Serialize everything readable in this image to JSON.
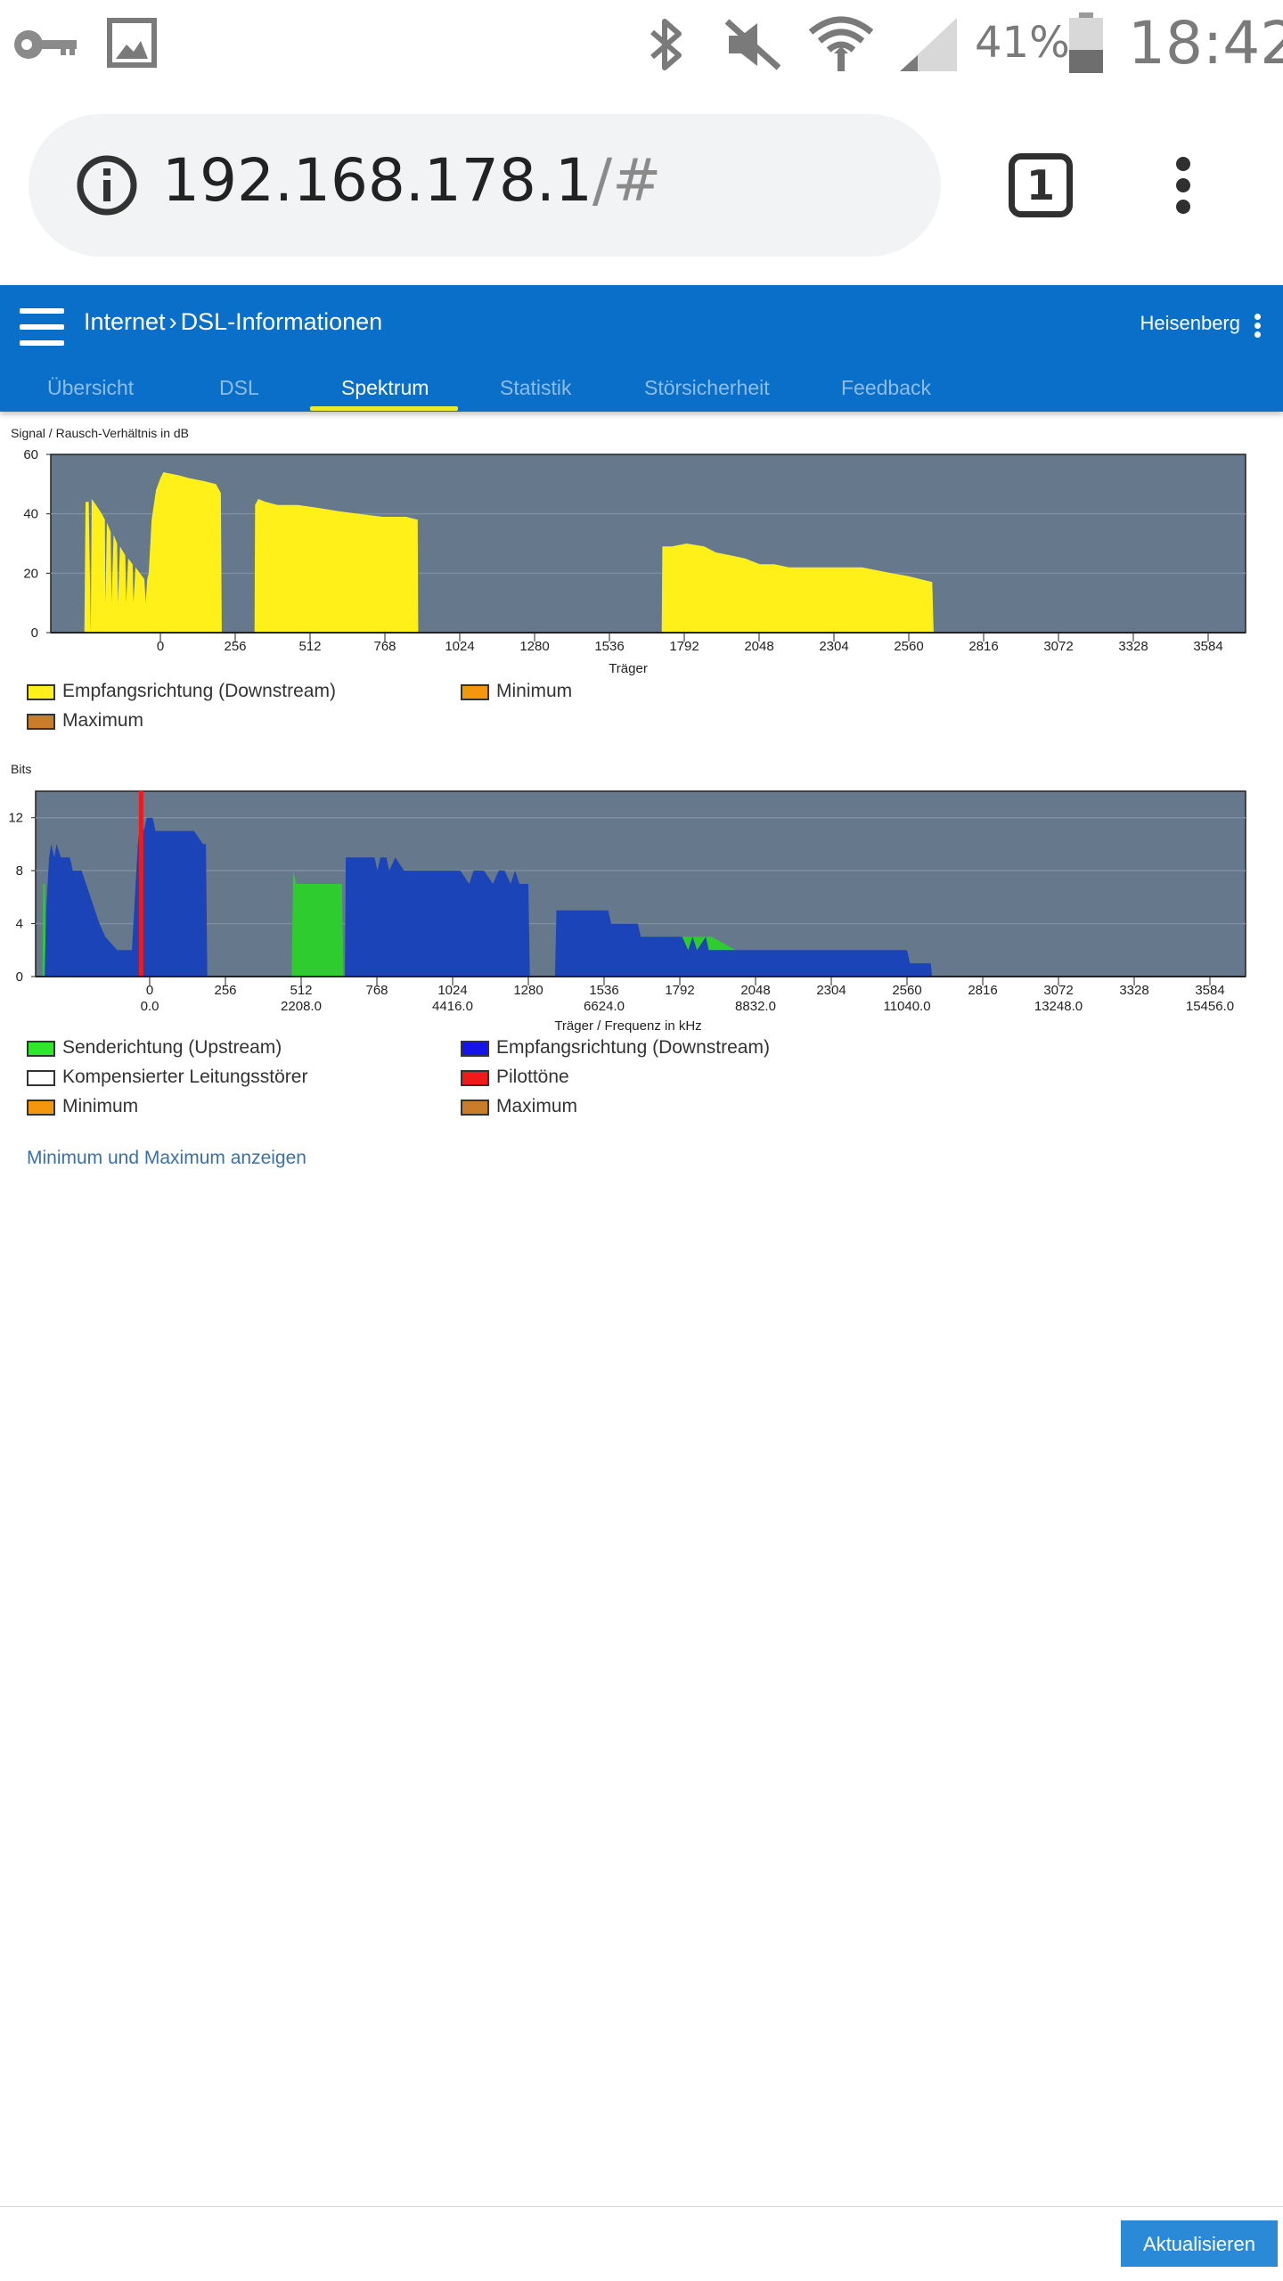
{
  "status_bar": {
    "icons": [
      "key-icon",
      "image-icon",
      "bluetooth-icon",
      "mute-icon",
      "wifi-icon",
      "signal-icon",
      "battery-icon"
    ],
    "battery": "41%",
    "time": "18:42"
  },
  "browser": {
    "url_host": "192.168.178.1",
    "url_path": "/#",
    "tab_count": "1"
  },
  "header": {
    "breadcrumb_parent": "Internet",
    "breadcrumb_current": "DSL-Informationen",
    "user": "Heisenberg",
    "accent_color": "#0a6fc8"
  },
  "tabs": [
    {
      "label": "Übersicht",
      "active": false
    },
    {
      "label": "DSL",
      "active": false
    },
    {
      "label": "Spektrum",
      "active": true
    },
    {
      "label": "Statistik",
      "active": false
    },
    {
      "label": "Störsicherheit",
      "active": false
    },
    {
      "label": "Feedback",
      "active": false
    }
  ],
  "chart_data": [
    {
      "type": "area",
      "title": "Signal / Rausch-Verhältnis in dB",
      "xlabel": "Träger",
      "ylabel": "",
      "ylim": [
        0,
        60
      ],
      "yticks": [
        "0",
        "20",
        "40",
        "60"
      ],
      "xticks": [
        "0",
        "256",
        "512",
        "768",
        "1024",
        "1280",
        "1536",
        "1792",
        "2048",
        "2304",
        "2560",
        "2816",
        "3072",
        "3328",
        "3584"
      ],
      "series": [
        {
          "name": "Empfangsrichtung (Downstream)",
          "color": "#fff01a",
          "points": [
            [
              -260,
              0
            ],
            [
              -256,
              44
            ],
            [
              -245,
              44
            ],
            [
              -238,
              0
            ],
            [
              -235,
              45
            ],
            [
              -220,
              43
            ],
            [
              -200,
              40
            ],
            [
              -190,
              38
            ],
            [
              -188,
              10
            ],
            [
              -183,
              37
            ],
            [
              -170,
              34
            ],
            [
              -167,
              10
            ],
            [
              -160,
              33
            ],
            [
              -148,
              30
            ],
            [
              -145,
              10
            ],
            [
              -138,
              29
            ],
            [
              -120,
              26
            ],
            [
              -117,
              10
            ],
            [
              -110,
              25
            ],
            [
              -95,
              23
            ],
            [
              -92,
              10
            ],
            [
              -85,
              22
            ],
            [
              -70,
              20
            ],
            [
              -55,
              18
            ],
            [
              -50,
              10
            ],
            [
              -45,
              18
            ],
            [
              -40,
              20
            ],
            [
              -30,
              38
            ],
            [
              -15,
              48
            ],
            [
              0,
              52
            ],
            [
              10,
              54
            ],
            [
              60,
              53
            ],
            [
              100,
              52
            ],
            [
              150,
              51
            ],
            [
              190,
              50
            ],
            [
              207,
              47
            ],
            [
              210,
              0
            ],
            [
              322,
              0
            ],
            [
              324,
              43
            ],
            [
              335,
              45
            ],
            [
              360,
              44
            ],
            [
              400,
              43
            ],
            [
              470,
              43
            ],
            [
              540,
              42
            ],
            [
              600,
              41
            ],
            [
              680,
              40
            ],
            [
              760,
              39
            ],
            [
              840,
              39
            ],
            [
              880,
              38
            ],
            [
              882,
              0
            ],
            [
              1715,
              0
            ],
            [
              1717,
              29
            ],
            [
              1750,
              29
            ],
            [
              1800,
              30
            ],
            [
              1860,
              29
            ],
            [
              1900,
              27
            ],
            [
              1950,
              26
            ],
            [
              2000,
              25
            ],
            [
              2050,
              23
            ],
            [
              2100,
              23
            ],
            [
              2150,
              22
            ],
            [
              2400,
              22
            ],
            [
              2450,
              21
            ],
            [
              2500,
              20
            ],
            [
              2560,
              19
            ],
            [
              2600,
              18
            ],
            [
              2640,
              17
            ],
            [
              2645,
              0
            ]
          ]
        },
        {
          "name": "Minimum",
          "color": "#f5960f",
          "points": []
        },
        {
          "name": "Maximum",
          "color": "#c97d2a",
          "points": []
        }
      ],
      "legend": [
        {
          "label": "Empfangsrichtung (Downstream)",
          "color": "#fff01a"
        },
        {
          "label": "Minimum",
          "color": "#f5960f"
        },
        {
          "label": "Maximum",
          "color": "#c97d2a"
        }
      ],
      "background": "#66788c",
      "grid": true
    },
    {
      "type": "area",
      "title": "Bits",
      "xlabel": "Träger / Frequenz in kHz",
      "ylabel": "",
      "ylim": [
        0,
        14
      ],
      "yticks": [
        "0",
        "4",
        "8",
        "12"
      ],
      "xticks": [
        "0",
        "256",
        "512",
        "768",
        "1024",
        "1280",
        "1536",
        "1792",
        "2048",
        "2304",
        "2560",
        "2816",
        "3072",
        "3328",
        "3584"
      ],
      "freq_ticks": [
        {
          "carrier": 0,
          "label": "0.0"
        },
        {
          "carrier": 512,
          "label": "2208.0"
        },
        {
          "carrier": 1024,
          "label": "4416.0"
        },
        {
          "carrier": 1536,
          "label": "6624.0"
        },
        {
          "carrier": 2048,
          "label": "8832.0"
        },
        {
          "carrier": 2560,
          "label": "11040.0"
        },
        {
          "carrier": 3072,
          "label": "13248.0"
        },
        {
          "carrier": 3584,
          "label": "15456.0"
        }
      ],
      "series": [
        {
          "name": "Senderichtung (Upstream)",
          "color": "#2ecc2e",
          "areas": [
            [
              [
                -362,
                0
              ],
              [
                -360,
                7
              ],
              [
                -354,
                7
              ],
              [
                -352,
                0
              ]
            ],
            [
              [
                480,
                0
              ],
              [
                485,
                8
              ],
              [
                495,
                7
              ],
              [
                650,
                7
              ],
              [
                655,
                0
              ]
            ],
            [
              [
                1630,
                0
              ],
              [
                1633,
                3
              ],
              [
                1650,
                3
              ],
              [
                1900,
                3
              ],
              [
                1980,
                2
              ],
              [
                2300,
                1
              ],
              [
                2355,
                1
              ],
              [
                2356,
                0
              ]
            ]
          ]
        },
        {
          "name": "Empfangsrichtung (Downstream)",
          "color": "#1a44b8",
          "points": [
            [
              -355,
              0
            ],
            [
              -350,
              5
            ],
            [
              -340,
              9
            ],
            [
              -333,
              10
            ],
            [
              -322,
              9
            ],
            [
              -315,
              10
            ],
            [
              -300,
              9
            ],
            [
              -270,
              9
            ],
            [
              -260,
              8
            ],
            [
              -230,
              8
            ],
            [
              -215,
              7
            ],
            [
              -200,
              6
            ],
            [
              -185,
              5
            ],
            [
              -170,
              4
            ],
            [
              -150,
              3
            ],
            [
              -110,
              2
            ],
            [
              -60,
              2
            ],
            [
              -50,
              6
            ],
            [
              -40,
              10
            ],
            [
              -30,
              12
            ],
            [
              -20,
              11
            ],
            [
              -10,
              12
            ],
            [
              10,
              12
            ],
            [
              20,
              11
            ],
            [
              50,
              11
            ],
            [
              100,
              11
            ],
            [
              150,
              11
            ],
            [
              180,
              10
            ],
            [
              190,
              10
            ],
            [
              195,
              0
            ],
            [
              480,
              0
            ],
            [
              482,
              0
            ],
            [
              660,
              0
            ],
            [
              663,
              9
            ],
            [
              720,
              9
            ],
            [
              760,
              9
            ],
            [
              770,
              8
            ],
            [
              780,
              9
            ],
            [
              800,
              9
            ],
            [
              810,
              8
            ],
            [
              830,
              9
            ],
            [
              860,
              8
            ],
            [
              960,
              8
            ],
            [
              1050,
              8
            ],
            [
              1080,
              7
            ],
            [
              1095,
              8
            ],
            [
              1130,
              8
            ],
            [
              1160,
              7
            ],
            [
              1180,
              8
            ],
            [
              1200,
              8
            ],
            [
              1220,
              7
            ],
            [
              1235,
              8
            ],
            [
              1250,
              7
            ],
            [
              1280,
              7
            ],
            [
              1285,
              0
            ],
            [
              1370,
              0
            ],
            [
              1375,
              5
            ],
            [
              1550,
              5
            ],
            [
              1560,
              4
            ],
            [
              1650,
              4
            ],
            [
              1660,
              3
            ],
            [
              1800,
              3
            ],
            [
              1820,
              2
            ],
            [
              1835,
              3
            ],
            [
              1850,
              2
            ],
            [
              1880,
              3
            ],
            [
              1890,
              2
            ],
            [
              2010,
              2
            ],
            [
              2040,
              2
            ],
            [
              2080,
              2
            ],
            [
              2150,
              2
            ],
            [
              2200,
              2
            ],
            [
              2300,
              2
            ],
            [
              2400,
              2
            ],
            [
              2500,
              2
            ],
            [
              2560,
              2
            ],
            [
              2570,
              1
            ],
            [
              2640,
              1
            ],
            [
              2645,
              0
            ]
          ]
        },
        {
          "name": "Kompensierter Leitungsstörer",
          "color": "#ffffff",
          "points": []
        },
        {
          "name": "Pilottöne",
          "color": "#f01a1a",
          "markers": [
            -29
          ]
        },
        {
          "name": "Minimum",
          "color": "#f5960f",
          "points": []
        },
        {
          "name": "Maximum",
          "color": "#c97d2a",
          "points": []
        }
      ],
      "legend": [
        {
          "label": "Senderichtung (Upstream)",
          "color": "#2ee82e"
        },
        {
          "label": "Empfangsrichtung (Downstream)",
          "color": "#1414e8"
        },
        {
          "label": "Kompensierter Leitungsstörer",
          "color": "#ffffff"
        },
        {
          "label": "Pilottöne",
          "color": "#f01a1a"
        },
        {
          "label": "Minimum",
          "color": "#f5960f"
        },
        {
          "label": "Maximum",
          "color": "#c97d2a"
        }
      ],
      "background": "#66788c",
      "grid": true
    }
  ],
  "minmax_link": "Minimum und Maximum anzeigen",
  "footer": {
    "refresh_label": "Aktualisieren"
  }
}
